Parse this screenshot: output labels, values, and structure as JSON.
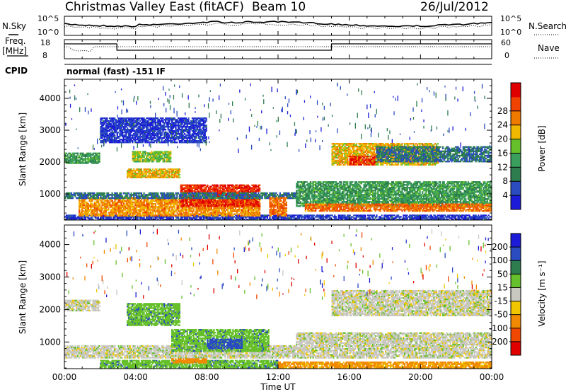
{
  "header": {
    "station": "Christmas Valley East (fitACF)",
    "beam": "Beam 10",
    "date": "26/Jul/2012"
  },
  "top_panel": {
    "left_label": "N.Sky",
    "right_label": "N.Search",
    "left_ticks": [
      "10^5",
      "10^0"
    ],
    "right_ticks": [
      "10^5",
      "10^0"
    ]
  },
  "freq_panel": {
    "left_label_1": "Freq.",
    "left_label_2": "[MHz]",
    "right_label": "Nave",
    "left_ticks": [
      "18",
      "8"
    ],
    "right_ticks": [
      "60",
      "0"
    ]
  },
  "cpid": {
    "label": "CPID",
    "text": "normal (fast) -151 IF"
  },
  "x_axis": {
    "label": "Time UT",
    "ticks": [
      "00:00",
      "04:00",
      "08:00",
      "12:00",
      "16:00",
      "20:00",
      "00:00"
    ]
  },
  "colors": {
    "power": [
      "#1c1cd8",
      "#2a4cc0",
      "#2e7d4f",
      "#3a9f5c",
      "#66c02b",
      "#f0b800",
      "#f07a00",
      "#f04200",
      "#e00000"
    ],
    "velocity": [
      "#1c1cd8",
      "#2a4cc0",
      "#2e7d4f",
      "#66c02b",
      "#c8c8c0",
      "#f0c600",
      "#f08a00",
      "#f04800",
      "#e00000"
    ],
    "ground_scatter": "#c8c8c0"
  },
  "chart_data": [
    {
      "type": "heatmap",
      "name_hint": "power",
      "ylabel": "Slant Range [km]",
      "xlabel": "",
      "yticks": [
        1000,
        2000,
        3000,
        4000
      ],
      "ylim": [
        180,
        4600
      ],
      "xlim_hours": [
        0,
        24
      ],
      "colorbar_label": "Power [dB]",
      "colorbar_ticks": [
        "4",
        "8",
        "12",
        "16",
        "20",
        "24",
        "28"
      ],
      "regions": [
        {
          "x": [
            0.0,
            24.0
          ],
          "y": [
            180,
            350
          ],
          "value": 4
        },
        {
          "x": [
            0.8,
            11.0
          ],
          "y": [
            300,
            900
          ],
          "value": 22
        },
        {
          "x": [
            6.5,
            11.0
          ],
          "y": [
            600,
            1300
          ],
          "value": 28
        },
        {
          "x": [
            0.0,
            13.0
          ],
          "y": [
            850,
            1050
          ],
          "value": 8
        },
        {
          "x": [
            0.0,
            2.0
          ],
          "y": [
            1950,
            2300
          ],
          "value": 12
        },
        {
          "x": [
            3.5,
            6.5
          ],
          "y": [
            1500,
            1800
          ],
          "value": 20
        },
        {
          "x": [
            3.8,
            6.0
          ],
          "y": [
            2000,
            2350
          ],
          "value": 16
        },
        {
          "x": [
            11.5,
            12.5
          ],
          "y": [
            300,
            900
          ],
          "value": 24
        },
        {
          "x": [
            13.0,
            24.0
          ],
          "y": [
            600,
            1400
          ],
          "value": 12
        },
        {
          "x": [
            13.5,
            24.0
          ],
          "y": [
            450,
            700
          ],
          "value": 24
        },
        {
          "x": [
            15.0,
            21.0
          ],
          "y": [
            1900,
            2600
          ],
          "value": 20
        },
        {
          "x": [
            16.0,
            17.5
          ],
          "y": [
            1900,
            2200
          ],
          "value": 28
        },
        {
          "x": [
            17.5,
            24.0
          ],
          "y": [
            2000,
            2500
          ],
          "value": 8
        },
        {
          "x": [
            2.0,
            8.0
          ],
          "y": [
            2600,
            3400
          ],
          "value": 4
        }
      ]
    },
    {
      "type": "heatmap",
      "name_hint": "velocity",
      "ylabel": "Slant Range [km]",
      "xlabel": "Time UT",
      "yticks": [
        1000,
        2000,
        3000,
        4000
      ],
      "ylim": [
        180,
        4600
      ],
      "xlim_hours": [
        0,
        24
      ],
      "colorbar_label": "Velocity [m s⁻¹]",
      "colorbar_ticks": [
        "200",
        "100",
        "50",
        "15",
        "-15",
        "-50",
        "-100",
        "-200"
      ],
      "regions": [
        {
          "x": [
            0.0,
            13.0
          ],
          "y": [
            500,
            900
          ],
          "value": 0
        },
        {
          "x": [
            0.0,
            2.0
          ],
          "y": [
            1950,
            2300
          ],
          "value": 0
        },
        {
          "x": [
            3.5,
            6.5
          ],
          "y": [
            1500,
            2200
          ],
          "value": 60
        },
        {
          "x": [
            6.0,
            11.5
          ],
          "y": [
            700,
            1400
          ],
          "value": 60
        },
        {
          "x": [
            8.0,
            10.0
          ],
          "y": [
            800,
            1100
          ],
          "value": 120
        },
        {
          "x": [
            2.0,
            12.0
          ],
          "y": [
            200,
            450
          ],
          "value": 60
        },
        {
          "x": [
            12.0,
            24.0
          ],
          "y": [
            200,
            400
          ],
          "value": -60
        },
        {
          "x": [
            13.0,
            24.0
          ],
          "y": [
            500,
            1300
          ],
          "value": 0
        },
        {
          "x": [
            15.0,
            24.0
          ],
          "y": [
            1800,
            2600
          ],
          "value": 0
        },
        {
          "x": [
            6.0,
            8.0
          ],
          "y": [
            350,
            500
          ],
          "value": -80
        }
      ]
    }
  ]
}
